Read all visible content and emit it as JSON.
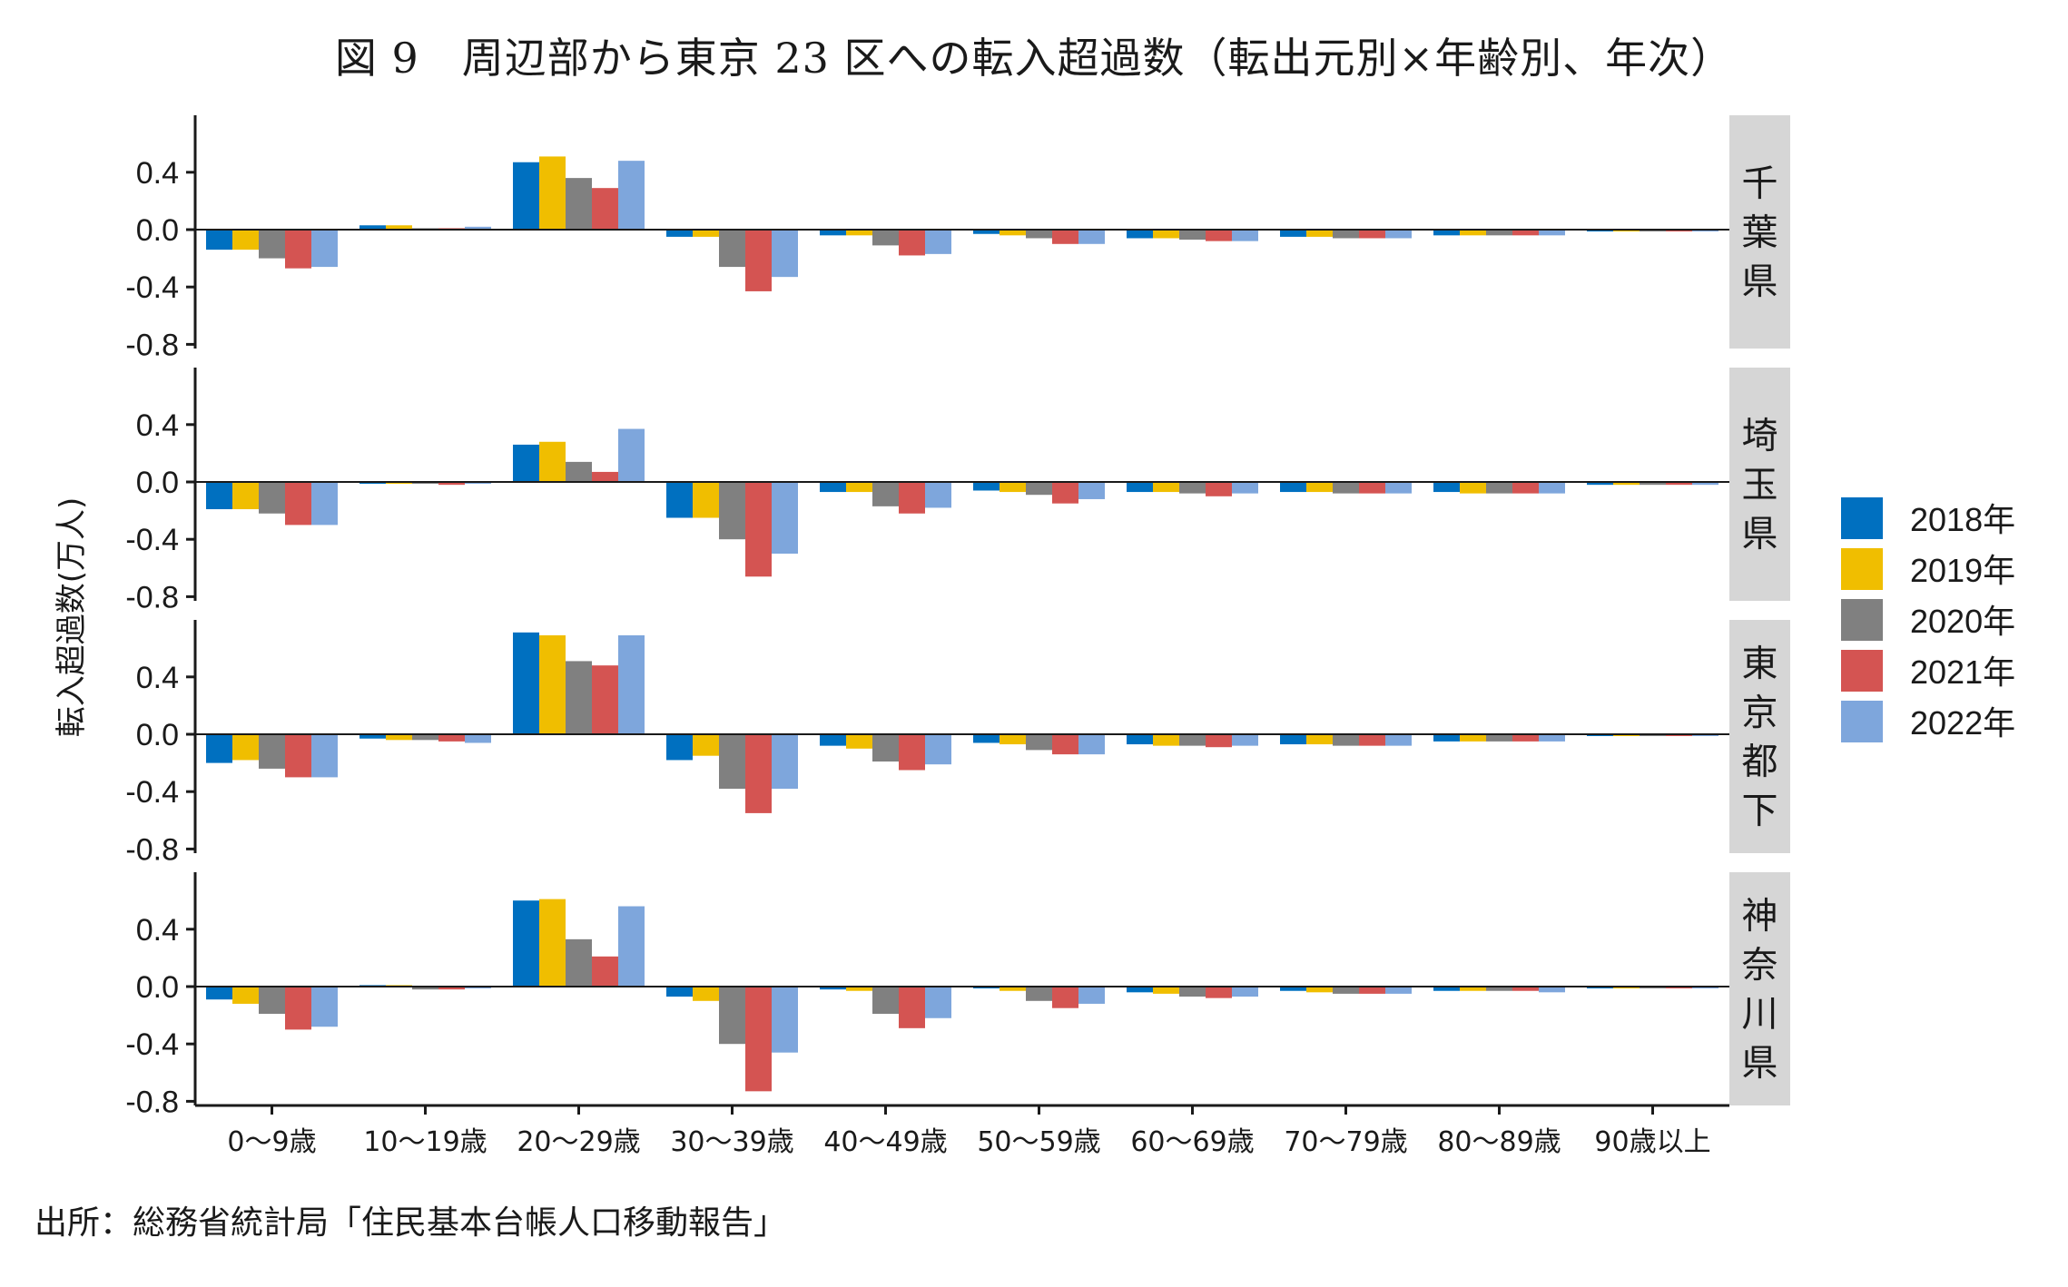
{
  "title": "図 9　周辺部から東京 23 区への転入超過数（転出元別×年齢別、年次）",
  "source": "出所：総務省統計局「住民基本台帳人口移動報告」",
  "chart_data": {
    "type": "bar",
    "ylabel": "転入超過数(万人)",
    "ylim": [
      -0.8,
      0.8
    ],
    "yticks": [
      0.4,
      0.0,
      -0.4,
      -0.8
    ],
    "ytick_labels": [
      "0.4",
      "0.0",
      "-0.4",
      "-0.8"
    ],
    "categories": [
      "0～9歳",
      "10～19歳",
      "20～29歳",
      "30～39歳",
      "40～49歳",
      "50～59歳",
      "60～69歳",
      "70～79歳",
      "80～89歳",
      "90歳以上"
    ],
    "legend": {
      "position": "right",
      "items": [
        {
          "name": "2018年",
          "color": "#0070C0"
        },
        {
          "name": "2019年",
          "color": "#F0BE00"
        },
        {
          "name": "2020年",
          "color": "#808080"
        },
        {
          "name": "2021年",
          "color": "#D45452"
        },
        {
          "name": "2022年",
          "color": "#7EA6DC"
        }
      ]
    },
    "panels": [
      {
        "name": "千葉県",
        "values": [
          [
            -0.14,
            -0.14,
            -0.2,
            -0.27,
            -0.26
          ],
          [
            0.03,
            0.03,
            0.01,
            0.01,
            0.02
          ],
          [
            0.47,
            0.51,
            0.36,
            0.29,
            0.48
          ],
          [
            -0.05,
            -0.05,
            -0.26,
            -0.43,
            -0.33
          ],
          [
            -0.04,
            -0.04,
            -0.11,
            -0.18,
            -0.17
          ],
          [
            -0.03,
            -0.04,
            -0.06,
            -0.1,
            -0.1
          ],
          [
            -0.06,
            -0.06,
            -0.07,
            -0.08,
            -0.08
          ],
          [
            -0.05,
            -0.05,
            -0.06,
            -0.06,
            -0.06
          ],
          [
            -0.04,
            -0.04,
            -0.04,
            -0.04,
            -0.04
          ],
          [
            -0.01,
            -0.01,
            -0.01,
            -0.01,
            -0.01
          ]
        ]
      },
      {
        "name": "埼玉県",
        "values": [
          [
            -0.19,
            -0.19,
            -0.22,
            -0.3,
            -0.3
          ],
          [
            -0.01,
            -0.01,
            -0.01,
            -0.02,
            -0.01
          ],
          [
            0.26,
            0.28,
            0.14,
            0.07,
            0.37
          ],
          [
            -0.25,
            -0.25,
            -0.4,
            -0.66,
            -0.5
          ],
          [
            -0.07,
            -0.07,
            -0.17,
            -0.22,
            -0.18
          ],
          [
            -0.06,
            -0.07,
            -0.09,
            -0.15,
            -0.12
          ],
          [
            -0.07,
            -0.07,
            -0.08,
            -0.1,
            -0.08
          ],
          [
            -0.07,
            -0.07,
            -0.08,
            -0.08,
            -0.08
          ],
          [
            -0.07,
            -0.08,
            -0.08,
            -0.08,
            -0.08
          ],
          [
            -0.02,
            -0.02,
            -0.02,
            -0.02,
            -0.02
          ]
        ]
      },
      {
        "name": "東京都下",
        "values": [
          [
            -0.2,
            -0.18,
            -0.24,
            -0.3,
            -0.3
          ],
          [
            -0.03,
            -0.04,
            -0.04,
            -0.05,
            -0.06
          ],
          [
            0.71,
            0.69,
            0.51,
            0.48,
            0.69
          ],
          [
            -0.18,
            -0.15,
            -0.38,
            -0.55,
            -0.38
          ],
          [
            -0.08,
            -0.1,
            -0.19,
            -0.25,
            -0.21
          ],
          [
            -0.06,
            -0.07,
            -0.11,
            -0.14,
            -0.14
          ],
          [
            -0.07,
            -0.08,
            -0.08,
            -0.09,
            -0.08
          ],
          [
            -0.07,
            -0.07,
            -0.08,
            -0.08,
            -0.08
          ],
          [
            -0.05,
            -0.05,
            -0.05,
            -0.05,
            -0.05
          ],
          [
            -0.01,
            -0.01,
            -0.01,
            -0.01,
            -0.01
          ]
        ]
      },
      {
        "name": "神奈川県",
        "values": [
          [
            -0.09,
            -0.12,
            -0.19,
            -0.3,
            -0.28
          ],
          [
            0.01,
            0.01,
            -0.02,
            -0.02,
            -0.01
          ],
          [
            0.6,
            0.61,
            0.33,
            0.21,
            0.56
          ],
          [
            -0.07,
            -0.1,
            -0.4,
            -0.73,
            -0.46
          ],
          [
            -0.02,
            -0.03,
            -0.19,
            -0.29,
            -0.22
          ],
          [
            -0.01,
            -0.03,
            -0.1,
            -0.15,
            -0.12
          ],
          [
            -0.04,
            -0.05,
            -0.07,
            -0.08,
            -0.07
          ],
          [
            -0.03,
            -0.04,
            -0.05,
            -0.05,
            -0.05
          ],
          [
            -0.03,
            -0.03,
            -0.03,
            -0.03,
            -0.04
          ],
          [
            -0.01,
            -0.01,
            -0.01,
            -0.01,
            -0.01
          ]
        ]
      }
    ]
  }
}
